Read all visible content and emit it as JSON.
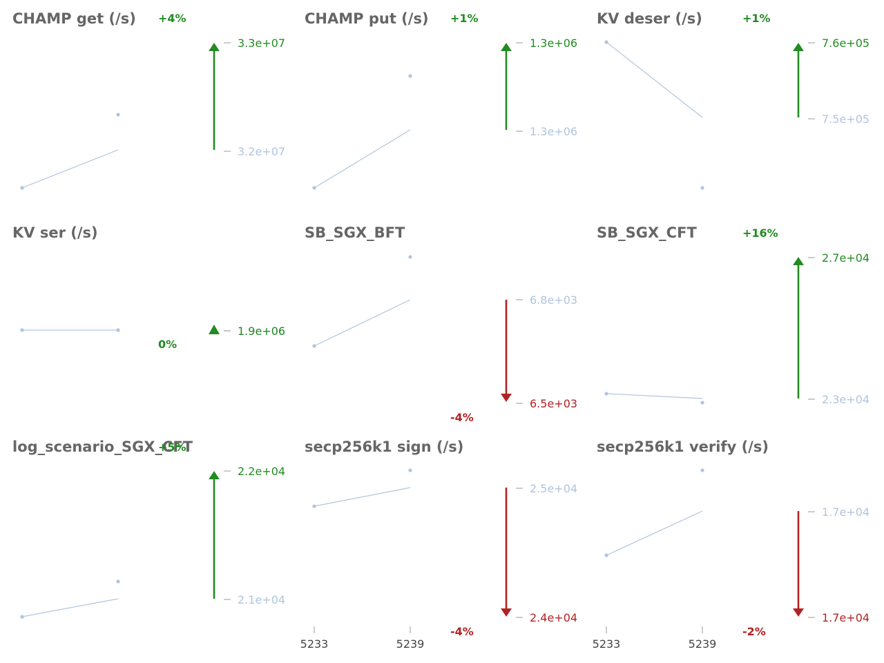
{
  "colors": {
    "up": "#228b22",
    "down": "#b22222",
    "line": "#b0c4de",
    "title": "#666666",
    "axis_tick": "#bbbbbb"
  },
  "chart_data": [
    {
      "type": "line",
      "title": "CHAMP get (/s)",
      "x": [
        "5233",
        "5239"
      ],
      "prev": 32000000,
      "now": 33000000,
      "change_label": "+4%",
      "direction": "up",
      "prev_label": "3.2e+07",
      "now_label": "3.3e+07",
      "show_x_ticks": false
    },
    {
      "type": "line",
      "title": "CHAMP put (/s)",
      "x": [
        "5233",
        "5239"
      ],
      "prev": 1285000,
      "now": 1300000,
      "change_label": "+1%",
      "direction": "up",
      "prev_label": "1.3e+06",
      "now_label": "1.3e+06",
      "show_x_ticks": false
    },
    {
      "type": "line",
      "title": "KV deser (/s)",
      "x": [
        "5233",
        "5239"
      ],
      "prev": 750000,
      "now": 760000,
      "change_label": "+1%",
      "direction": "up",
      "prev_label": "7.5e+05",
      "now_label": "7.6e+05",
      "show_x_ticks": false
    },
    {
      "type": "line",
      "title": "KV ser (/s)",
      "x": [
        "5233",
        "5239"
      ],
      "prev": 1900000,
      "now": 1900000,
      "change_label": "0%",
      "direction": "flat",
      "prev_label": "1.9e+06",
      "now_label": "1.9e+06",
      "show_x_ticks": false
    },
    {
      "type": "line",
      "title": "SB_SGX_BFT",
      "x": [
        "5233",
        "5239"
      ],
      "prev": 6800,
      "now": 6500,
      "change_label": "-4%",
      "direction": "down",
      "prev_label": "6.8e+03",
      "now_label": "6.5e+03",
      "show_x_ticks": false
    },
    {
      "type": "line",
      "title": "SB_SGX_CFT",
      "x": [
        "5233",
        "5239"
      ],
      "prev": 23000,
      "now": 27000,
      "change_label": "+16%",
      "direction": "up",
      "prev_label": "2.3e+04",
      "now_label": "2.7e+04",
      "show_x_ticks": false
    },
    {
      "type": "line",
      "title": "log_scenario_SGX_CFT",
      "x": [
        "5233",
        "5239"
      ],
      "prev": 21000,
      "now": 22000,
      "change_label": "+5%",
      "direction": "up",
      "prev_label": "2.1e+04",
      "now_label": "2.2e+04",
      "show_x_ticks": false
    },
    {
      "type": "line",
      "title": "secp256k1 sign (/s)",
      "x": [
        "5233",
        "5239"
      ],
      "prev": 25000,
      "now": 24000,
      "change_label": "-4%",
      "direction": "down",
      "prev_label": "2.5e+04",
      "now_label": "2.4e+04",
      "show_x_ticks": true
    },
    {
      "type": "line",
      "title": "secp256k1 verify (/s)",
      "x": [
        "5233",
        "5239"
      ],
      "prev": 17350,
      "now": 17000,
      "change_label": "-2%",
      "direction": "down",
      "prev_label": "1.7e+04",
      "now_label": "1.7e+04",
      "show_x_ticks": true
    }
  ]
}
